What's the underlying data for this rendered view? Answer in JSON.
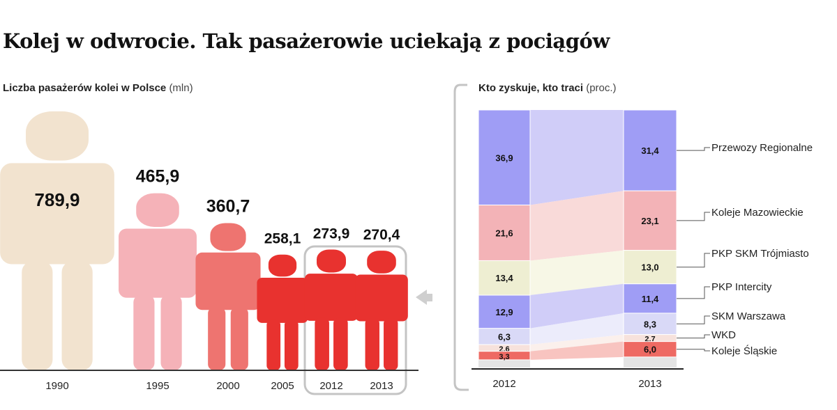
{
  "title": "Kolej w odwrocie. Tak pasażerowie uciekają z pociągów",
  "chart_data": [
    {
      "type": "bar",
      "title": "Liczba pasażerów kolei w Polsce",
      "unit": "(mln)",
      "categories": [
        "1990",
        "1995",
        "2000",
        "2005",
        "2012",
        "2013"
      ],
      "values": [
        789.9,
        465.9,
        360.7,
        258.1,
        273.9,
        270.4
      ],
      "labels": [
        "789,9",
        "465,9",
        "360,7",
        "258,1",
        "273,9",
        "270,4"
      ],
      "colors": [
        "#f2e3cf",
        "#f5b2b8",
        "#ee7470",
        "#e8322f",
        "#e8322f",
        "#e8322f"
      ],
      "highlight": [
        "2012",
        "2013"
      ]
    },
    {
      "type": "bar",
      "stacked": true,
      "percent": true,
      "title": "Kto zyskuje, kto traci",
      "unit": "(proc.)",
      "categories": [
        "2012",
        "2013"
      ],
      "series": [
        {
          "name": "Przewozy Regionalne",
          "values": [
            36.9,
            31.4
          ],
          "labels": [
            "36,9",
            "31,4"
          ],
          "color": "#9f9df5"
        },
        {
          "name": "Koleje Mazowieckie",
          "values": [
            21.6,
            23.1
          ],
          "labels": [
            "21,6",
            "23,1"
          ],
          "color": "#f3b3b7"
        },
        {
          "name": "PKP SKM Trójmiasto",
          "values": [
            13.4,
            13.0
          ],
          "labels": [
            "13,4",
            "13,0"
          ],
          "color": "#eeeed2"
        },
        {
          "name": "PKP Intercity",
          "values": [
            12.9,
            11.4
          ],
          "labels": [
            "12,9",
            "11,4"
          ],
          "color": "#9f9df5"
        },
        {
          "name": "SKM Warszawa",
          "values": [
            6.3,
            8.3
          ],
          "labels": [
            "6,3",
            "8,3"
          ],
          "color": "#d9d9f7"
        },
        {
          "name": "WKD",
          "values": [
            2.6,
            2.7
          ],
          "labels": [
            "2,6",
            "2,7"
          ],
          "color": "#f7e2dc"
        },
        {
          "name": "Koleje Śląskie",
          "values": [
            3.3,
            6.0
          ],
          "labels": [
            "3,3",
            "6,0"
          ],
          "color": "#ee6a63"
        }
      ]
    }
  ]
}
